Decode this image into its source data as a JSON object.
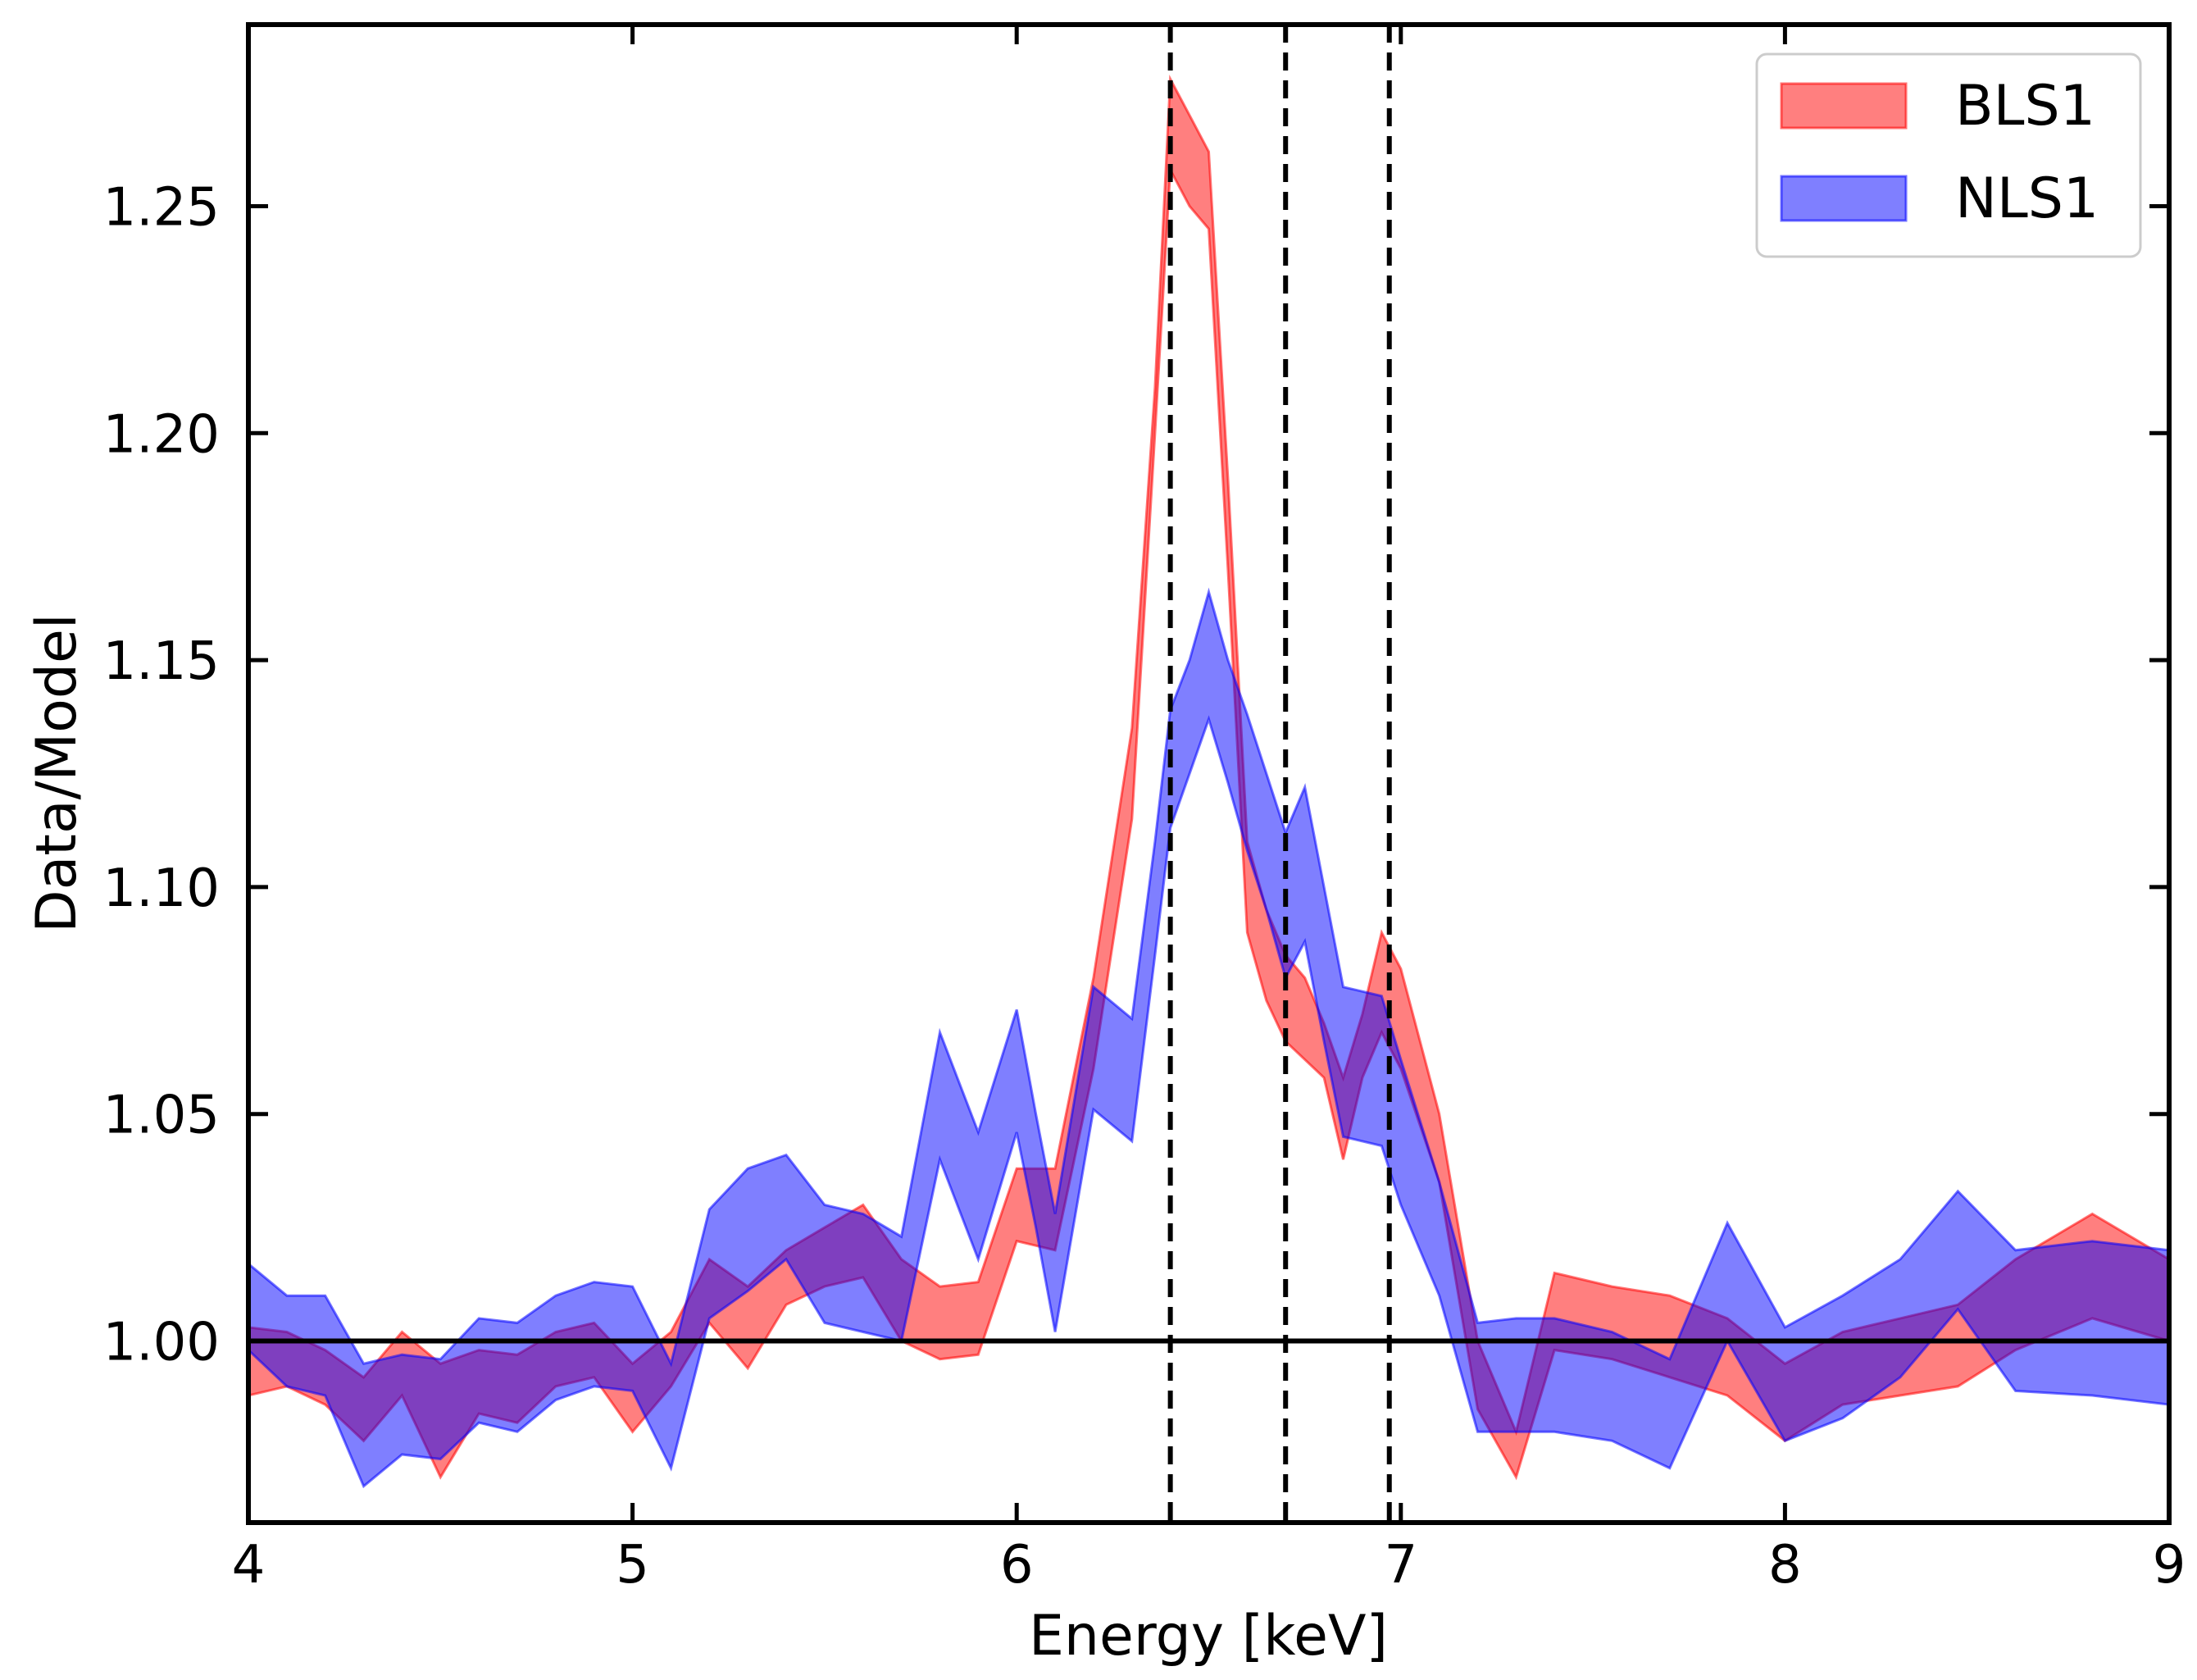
{
  "chart_data": {
    "type": "area",
    "title": "",
    "xlabel": "Energy [keV]",
    "ylabel": "Data/Model",
    "xlim": [
      4,
      9
    ],
    "ylim": [
      0.96,
      1.29
    ],
    "xticks": [
      4,
      5,
      6,
      7,
      8,
      9
    ],
    "xtick_labels": [
      "4",
      "5",
      "6",
      "7",
      "8",
      "9"
    ],
    "yticks": [
      1.0,
      1.05,
      1.1,
      1.15,
      1.2,
      1.25
    ],
    "ytick_labels": [
      "1.00",
      "1.05",
      "1.10",
      "1.15",
      "1.20",
      "1.25"
    ],
    "reference_line": 1.0,
    "vlines": [
      6.4,
      6.7,
      6.97
    ],
    "legend_position": "top-right",
    "series": [
      {
        "name": "BLS1",
        "color": "#ff0000",
        "x": [
          4.0,
          4.1,
          4.2,
          4.3,
          4.4,
          4.5,
          4.6,
          4.7,
          4.8,
          4.9,
          5.0,
          5.1,
          5.2,
          5.3,
          5.4,
          5.5,
          5.6,
          5.7,
          5.8,
          5.9,
          6.0,
          6.1,
          6.2,
          6.3,
          6.36,
          6.4,
          6.45,
          6.5,
          6.55,
          6.6,
          6.65,
          6.7,
          6.75,
          6.8,
          6.85,
          6.9,
          6.95,
          7.0,
          7.1,
          7.2,
          7.3,
          7.4,
          7.55,
          7.7,
          7.85,
          8.0,
          8.15,
          8.3,
          8.45,
          8.6,
          8.8,
          9.0
        ],
        "upper": [
          1.003,
          1.002,
          0.998,
          0.992,
          1.002,
          0.995,
          0.998,
          0.997,
          1.002,
          1.004,
          0.995,
          1.002,
          1.018,
          1.012,
          1.02,
          1.025,
          1.03,
          1.018,
          1.012,
          1.013,
          1.038,
          1.038,
          1.08,
          1.135,
          1.21,
          1.278,
          1.27,
          1.262,
          1.19,
          1.11,
          1.095,
          1.085,
          1.08,
          1.07,
          1.058,
          1.072,
          1.09,
          1.082,
          1.05,
          1.0,
          0.98,
          1.015,
          1.012,
          1.01,
          1.005,
          0.995,
          1.002,
          1.005,
          1.008,
          1.018,
          1.028,
          1.018
        ],
        "lower": [
          0.988,
          0.99,
          0.986,
          0.978,
          0.988,
          0.97,
          0.984,
          0.982,
          0.99,
          0.992,
          0.98,
          0.99,
          1.004,
          0.994,
          1.008,
          1.012,
          1.014,
          1.0,
          0.996,
          0.997,
          1.022,
          1.02,
          1.06,
          1.115,
          1.2,
          1.258,
          1.25,
          1.245,
          1.17,
          1.09,
          1.075,
          1.066,
          1.062,
          1.058,
          1.04,
          1.058,
          1.068,
          1.06,
          1.035,
          0.985,
          0.97,
          0.998,
          0.996,
          0.992,
          0.988,
          0.978,
          0.986,
          0.988,
          0.99,
          0.998,
          1.005,
          1.0
        ]
      },
      {
        "name": "NLS1",
        "color": "#0000ff",
        "x": [
          4.0,
          4.1,
          4.2,
          4.3,
          4.4,
          4.5,
          4.6,
          4.7,
          4.8,
          4.9,
          5.0,
          5.1,
          5.2,
          5.3,
          5.4,
          5.5,
          5.6,
          5.7,
          5.8,
          5.9,
          6.0,
          6.05,
          6.1,
          6.2,
          6.3,
          6.36,
          6.4,
          6.45,
          6.5,
          6.55,
          6.6,
          6.65,
          6.7,
          6.75,
          6.8,
          6.85,
          6.9,
          6.95,
          7.0,
          7.1,
          7.2,
          7.3,
          7.4,
          7.55,
          7.7,
          7.85,
          8.0,
          8.15,
          8.3,
          8.45,
          8.6,
          8.8,
          9.0
        ],
        "upper": [
          1.017,
          1.01,
          1.01,
          0.995,
          0.997,
          0.996,
          1.005,
          1.004,
          1.01,
          1.013,
          1.012,
          0.995,
          1.029,
          1.038,
          1.041,
          1.03,
          1.028,
          1.023,
          1.068,
          1.046,
          1.073,
          1.05,
          1.028,
          1.078,
          1.071,
          1.11,
          1.139,
          1.15,
          1.165,
          1.15,
          1.138,
          1.125,
          1.112,
          1.122,
          1.1,
          1.078,
          1.077,
          1.076,
          1.062,
          1.035,
          1.004,
          1.005,
          1.005,
          1.002,
          0.996,
          1.026,
          1.003,
          1.01,
          1.018,
          1.033,
          1.02,
          1.022,
          1.02
        ],
        "lower": [
          0.998,
          0.99,
          0.988,
          0.968,
          0.975,
          0.974,
          0.982,
          0.98,
          0.987,
          0.99,
          0.989,
          0.972,
          1.005,
          1.011,
          1.018,
          1.004,
          1.002,
          1.0,
          1.04,
          1.018,
          1.046,
          1.025,
          1.002,
          1.051,
          1.044,
          1.085,
          1.113,
          1.125,
          1.137,
          1.123,
          1.108,
          1.095,
          1.08,
          1.088,
          1.066,
          1.045,
          1.044,
          1.043,
          1.03,
          1.01,
          0.98,
          0.98,
          0.98,
          0.978,
          0.972,
          1.0,
          0.978,
          0.983,
          0.992,
          1.007,
          0.989,
          0.988,
          0.986
        ]
      }
    ]
  }
}
